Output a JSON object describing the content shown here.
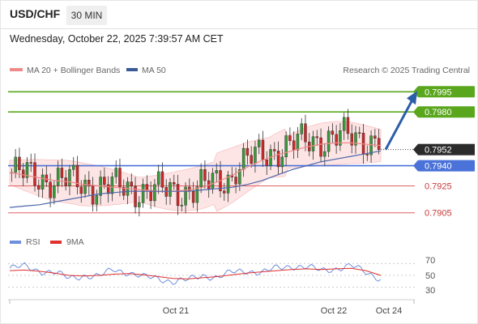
{
  "header": {
    "pair": "USD/CHF",
    "timeframe": "30 MIN"
  },
  "datetime": "Wednesday, October 22, 2025 7:39:57 AM CET",
  "legend": {
    "ma20": "MA 20 + Bollinger Bands",
    "ma50": "MA 50",
    "credit": "Research © 2025 Trading Central",
    "rsi": "RSI",
    "rsi_ma": "9MA"
  },
  "colors": {
    "up": "#3a9a3a",
    "down": "#cc2a2a",
    "ma20": "#f08a8a",
    "ma50": "#4a66aa",
    "band": "#fde0e0",
    "green": "#5aa71e",
    "blue": "#4a72d8",
    "red": "#e06464",
    "arrow": "#2a5ea8",
    "rsi": "#6e8fdc",
    "rsi_ma": "#e03030"
  },
  "chart_data": {
    "type": "candlestick",
    "symbol": "USD/CHF",
    "timeframe": "30 MIN",
    "ylim": [
      0.7897,
      0.8003
    ],
    "current_price": 0.7952,
    "target_arrow_to": 0.7995,
    "levels": [
      {
        "label": "0.7995",
        "value": 0.7995,
        "kind": "resistance"
      },
      {
        "label": "0.7980",
        "value": 0.798,
        "kind": "resistance"
      },
      {
        "label": "0.7940",
        "value": 0.794,
        "kind": "pivot"
      },
      {
        "label": "0.7925",
        "value": 0.7925,
        "kind": "support"
      },
      {
        "label": "0.7905",
        "value": 0.7905,
        "kind": "support"
      }
    ],
    "x_ticks": [
      "Oct 21",
      "Oct 22",
      "Oct 24"
    ],
    "rsi_levels": [
      "70",
      "50",
      "30"
    ],
    "series_ma20": [
      0.7935,
      0.7933,
      0.7931,
      0.7929,
      0.7928,
      0.7926,
      0.7925,
      0.7924,
      0.7923,
      0.7922,
      0.7921,
      0.7921,
      0.7922,
      0.7924,
      0.7928,
      0.7933,
      0.7939,
      0.7944,
      0.7948,
      0.7951,
      0.7954,
      0.7956,
      0.7957,
      0.7957,
      0.7956,
      0.7955
    ],
    "series_ma50": [
      0.7909,
      0.791,
      0.7911,
      0.7913,
      0.7915,
      0.7917,
      0.7919,
      0.792,
      0.7921,
      0.7921,
      0.7921,
      0.7921,
      0.7921,
      0.7922,
      0.7923,
      0.7924,
      0.7926,
      0.7929,
      0.7933,
      0.7937,
      0.794,
      0.7943,
      0.7945,
      0.7947,
      0.7949,
      0.7951
    ],
    "rsi_values": [
      62,
      65,
      58,
      55,
      45,
      50,
      48,
      60,
      55,
      47,
      45,
      40,
      42,
      50,
      47,
      55,
      58,
      55,
      62,
      66,
      64,
      58,
      62,
      66,
      55,
      45
    ],
    "rsi_ma_values": [
      58,
      59,
      57,
      54,
      50,
      49,
      50,
      52,
      53,
      51,
      48,
      45,
      44,
      46,
      48,
      51,
      54,
      56,
      58,
      60,
      61,
      60,
      61,
      62,
      58,
      50
    ]
  }
}
